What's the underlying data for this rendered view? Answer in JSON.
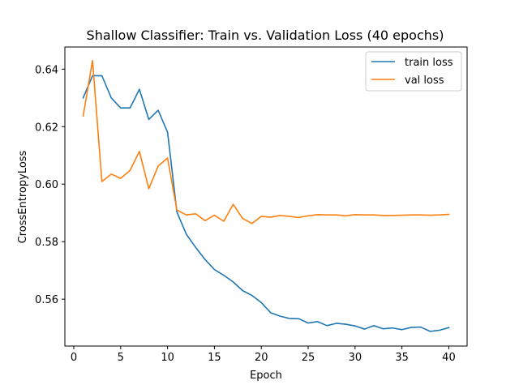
{
  "chart_data": {
    "type": "line",
    "title": "Shallow Classifier: Train vs. Validation Loss (40 epochs)",
    "xlabel": "Epoch",
    "ylabel": "CrossEntropyLoss",
    "xlim": [
      -0.95,
      41.95
    ],
    "ylim": [
      0.5437,
      0.6477
    ],
    "x_ticks": [
      0,
      5,
      10,
      15,
      20,
      25,
      30,
      35,
      40
    ],
    "y_ticks": [
      0.56,
      0.58,
      0.6,
      0.62,
      0.64
    ],
    "y_tick_labels": [
      "0.56",
      "0.58",
      "0.60",
      "0.62",
      "0.64"
    ],
    "grid": false,
    "legend": "top-right",
    "x": [
      1,
      2,
      3,
      4,
      5,
      6,
      7,
      8,
      9,
      10,
      11,
      12,
      13,
      14,
      15,
      16,
      17,
      18,
      19,
      20,
      21,
      22,
      23,
      24,
      25,
      26,
      27,
      28,
      29,
      30,
      31,
      32,
      33,
      34,
      35,
      36,
      37,
      38,
      39,
      40
    ],
    "series": [
      {
        "name": "train loss",
        "color": "#1f77b4",
        "values": [
          0.63,
          0.6377,
          0.6377,
          0.63,
          0.6265,
          0.6265,
          0.633,
          0.6225,
          0.6257,
          0.6181,
          0.5903,
          0.5826,
          0.578,
          0.5738,
          0.5703,
          0.5683,
          0.566,
          0.563,
          0.5613,
          0.5588,
          0.5553,
          0.5541,
          0.5533,
          0.5532,
          0.5517,
          0.5522,
          0.5508,
          0.5516,
          0.5513,
          0.5507,
          0.5496,
          0.5508,
          0.5497,
          0.55,
          0.5494,
          0.5502,
          0.5503,
          0.5488,
          0.5492,
          0.5501
        ]
      },
      {
        "name": "val loss",
        "color": "#ff7f0e",
        "values": [
          0.6237,
          0.643,
          0.6009,
          0.6035,
          0.602,
          0.6048,
          0.6114,
          0.5984,
          0.6063,
          0.6091,
          0.591,
          0.5893,
          0.5897,
          0.5873,
          0.5892,
          0.5871,
          0.593,
          0.5881,
          0.5863,
          0.5888,
          0.5885,
          0.5891,
          0.5888,
          0.5884,
          0.589,
          0.5894,
          0.5893,
          0.5893,
          0.589,
          0.5894,
          0.5893,
          0.5893,
          0.5891,
          0.5891,
          0.5892,
          0.5893,
          0.5893,
          0.5892,
          0.5893,
          0.5895
        ]
      }
    ]
  }
}
